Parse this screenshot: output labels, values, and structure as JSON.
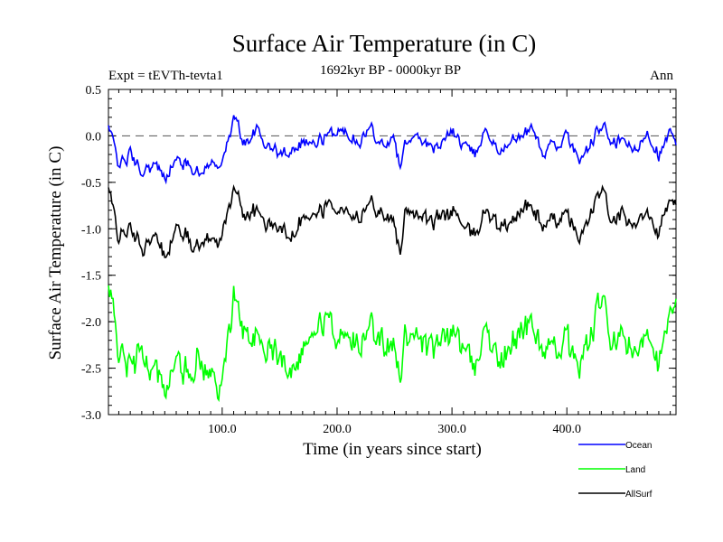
{
  "chart_data": {
    "type": "line",
    "title": "Surface Air Temperature (in C)",
    "subtitle_left": "Expt = tEVTh-tevta1",
    "subtitle_center": "1692kyr BP - 0000kyr BP",
    "subtitle_right": "Ann",
    "xlabel": "Time (in years since start)",
    "ylabel": "Surface Air Temperature (in C)",
    "xlim": [
      1,
      495
    ],
    "ylim": [
      -3.0,
      0.5
    ],
    "xticks": [
      100,
      200,
      300,
      400
    ],
    "xtick_labels": [
      "100.0",
      "200.0",
      "300.0",
      "400.0"
    ],
    "yticks": [
      0.5,
      0.0,
      -0.5,
      -1.0,
      -1.5,
      -2.0,
      -2.5,
      -3.0
    ],
    "ytick_labels": [
      "0.5",
      "0.0",
      "-0.5",
      "-1.0",
      "-1.5",
      "-2.0",
      "-2.5",
      "-3.0"
    ],
    "reference_line": 0.0,
    "legend_position": "bottom-right, outside plot",
    "series": [
      {
        "name": "Ocean",
        "color": "#0000ff",
        "x": [
          1,
          10,
          20,
          30,
          40,
          50,
          60,
          70,
          80,
          90,
          100,
          110,
          120,
          130,
          140,
          150,
          160,
          170,
          180,
          190,
          200,
          210,
          220,
          230,
          240,
          250,
          255,
          260,
          270,
          280,
          290,
          300,
          310,
          320,
          330,
          340,
          350,
          360,
          370,
          380,
          390,
          400,
          410,
          420,
          430,
          440,
          450,
          460,
          470,
          480,
          490,
          495
        ],
        "values": [
          0.1,
          -0.3,
          -0.2,
          -0.4,
          -0.3,
          -0.45,
          -0.25,
          -0.3,
          -0.4,
          -0.3,
          -0.3,
          0.2,
          -0.1,
          0.05,
          -0.1,
          -0.2,
          -0.15,
          -0.05,
          -0.1,
          0.0,
          0.05,
          0.05,
          -0.05,
          0.1,
          -0.1,
          -0.05,
          -0.4,
          -0.05,
          0.05,
          -0.15,
          -0.1,
          0.05,
          -0.1,
          -0.2,
          0.1,
          -0.2,
          -0.1,
          0.0,
          0.1,
          -0.2,
          -0.1,
          0.0,
          -0.25,
          -0.1,
          0.1,
          -0.1,
          -0.05,
          -0.2,
          0.05,
          -0.2,
          0.05,
          -0.15
        ]
      },
      {
        "name": "Land",
        "color": "#00ff00",
        "x": [
          1,
          10,
          20,
          30,
          40,
          50,
          60,
          70,
          80,
          90,
          100,
          110,
          120,
          130,
          140,
          150,
          160,
          170,
          180,
          190,
          200,
          210,
          220,
          230,
          240,
          250,
          255,
          260,
          270,
          280,
          290,
          300,
          310,
          320,
          330,
          340,
          350,
          360,
          370,
          380,
          390,
          400,
          410,
          420,
          430,
          440,
          450,
          460,
          470,
          480,
          490,
          495
        ],
        "values": [
          -1.6,
          -2.3,
          -2.5,
          -2.3,
          -2.6,
          -2.7,
          -2.4,
          -2.5,
          -2.4,
          -2.6,
          -2.7,
          -1.7,
          -2.1,
          -2.2,
          -2.3,
          -2.4,
          -2.5,
          -2.2,
          -2.2,
          -2.0,
          -2.2,
          -2.1,
          -2.2,
          -2.0,
          -2.2,
          -2.3,
          -2.7,
          -2.1,
          -2.1,
          -2.3,
          -2.3,
          -2.1,
          -2.3,
          -2.5,
          -2.0,
          -2.4,
          -2.3,
          -2.1,
          -2.0,
          -2.3,
          -2.3,
          -2.2,
          -2.5,
          -2.2,
          -1.7,
          -2.3,
          -2.2,
          -2.4,
          -2.0,
          -2.4,
          -2.0,
          -1.9
        ]
      },
      {
        "name": "AllSurf",
        "color": "#000000",
        "x": [
          1,
          10,
          20,
          30,
          40,
          50,
          60,
          70,
          80,
          90,
          100,
          110,
          120,
          130,
          140,
          150,
          160,
          170,
          180,
          190,
          200,
          210,
          220,
          230,
          240,
          250,
          255,
          260,
          270,
          280,
          290,
          300,
          310,
          320,
          330,
          340,
          350,
          360,
          370,
          380,
          390,
          400,
          410,
          420,
          430,
          440,
          450,
          460,
          470,
          480,
          490,
          495
        ],
        "values": [
          -0.6,
          -1.1,
          -1.0,
          -1.2,
          -1.1,
          -1.3,
          -1.0,
          -1.1,
          -1.2,
          -1.1,
          -1.1,
          -0.55,
          -0.85,
          -0.8,
          -0.95,
          -1.0,
          -1.1,
          -0.85,
          -0.9,
          -0.75,
          -0.8,
          -0.8,
          -0.85,
          -0.7,
          -0.85,
          -0.9,
          -1.3,
          -0.8,
          -0.8,
          -0.95,
          -0.9,
          -0.8,
          -0.95,
          -1.1,
          -0.75,
          -1.0,
          -0.95,
          -0.8,
          -0.75,
          -1.0,
          -0.9,
          -0.85,
          -1.1,
          -0.9,
          -0.55,
          -0.95,
          -0.85,
          -1.0,
          -0.75,
          -1.0,
          -0.75,
          -0.8
        ]
      }
    ]
  }
}
